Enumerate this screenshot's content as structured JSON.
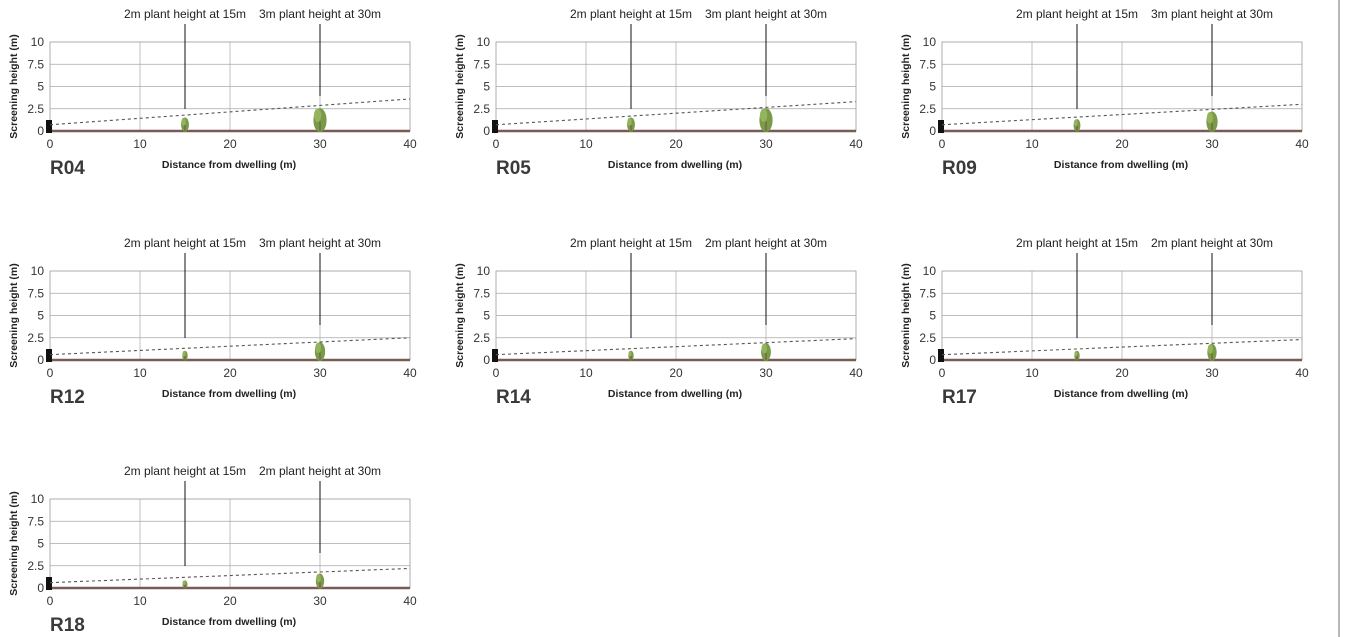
{
  "chart_data": [
    {
      "type": "line",
      "panel_label": "R04",
      "xlabel": "Distance from dwelling (m)",
      "ylabel": "Screening height (m)",
      "xlim": [
        0,
        40
      ],
      "ylim": [
        0,
        10
      ],
      "x_ticks": [
        "0",
        "10",
        "20",
        "30",
        "40"
      ],
      "y_ticks": [
        "0",
        "2.5",
        "5",
        "7.5",
        "10"
      ],
      "grid": true,
      "sightline": {
        "x": [
          0,
          40
        ],
        "y": [
          0.7,
          3.6
        ]
      },
      "plants": [
        {
          "x": 15,
          "height": 1.6,
          "label": "2m plant height at 15m"
        },
        {
          "x": 30,
          "height": 2.7,
          "label": "3m plant height at 30m"
        }
      ],
      "colors": {
        "sightline": "#555555",
        "plant": "#7a9a4a",
        "ground": "#7a5a55",
        "dwelling": "#111111"
      }
    },
    {
      "type": "line",
      "panel_label": "R05",
      "xlabel": "Distance from dwelling (m)",
      "ylabel": "Screening height (m)",
      "xlim": [
        0,
        40
      ],
      "ylim": [
        0,
        10
      ],
      "x_ticks": [
        "0",
        "10",
        "20",
        "30",
        "40"
      ],
      "y_ticks": [
        "0",
        "2.5",
        "5",
        "7.5",
        "10"
      ],
      "grid": true,
      "sightline": {
        "x": [
          0,
          40
        ],
        "y": [
          0.7,
          3.3
        ]
      },
      "plants": [
        {
          "x": 15,
          "height": 1.6,
          "label": "2m plant height at 15m"
        },
        {
          "x": 30,
          "height": 2.7,
          "label": "3m plant height at 30m"
        }
      ],
      "colors": {
        "sightline": "#555555",
        "plant": "#7a9a4a",
        "ground": "#7a5a55",
        "dwelling": "#111111"
      }
    },
    {
      "type": "line",
      "panel_label": "R09",
      "xlabel": "Distance from dwelling (m)",
      "ylabel": "Screening height (m)",
      "xlim": [
        0,
        40
      ],
      "ylim": [
        0,
        10
      ],
      "x_ticks": [
        "0",
        "10",
        "20",
        "30",
        "40"
      ],
      "y_ticks": [
        "0",
        "2.5",
        "5",
        "7.5",
        "10"
      ],
      "grid": true,
      "sightline": {
        "x": [
          0,
          40
        ],
        "y": [
          0.7,
          3.0
        ]
      },
      "plants": [
        {
          "x": 15,
          "height": 1.4,
          "label": "2m plant height at 15m"
        },
        {
          "x": 30,
          "height": 2.3,
          "label": "3m plant height at 30m"
        }
      ],
      "colors": {
        "sightline": "#555555",
        "plant": "#7a9a4a",
        "ground": "#7a5a55",
        "dwelling": "#111111"
      }
    },
    {
      "type": "line",
      "panel_label": "R12",
      "xlabel": "Distance from dwelling (m)",
      "ylabel": "Screening height (m)",
      "xlim": [
        0,
        40
      ],
      "ylim": [
        0,
        10
      ],
      "x_ticks": [
        "0",
        "10",
        "20",
        "30",
        "40"
      ],
      "y_ticks": [
        "0",
        "2.5",
        "5",
        "7.5",
        "10"
      ],
      "grid": true,
      "sightline": {
        "x": [
          0,
          40
        ],
        "y": [
          0.6,
          2.5
        ]
      },
      "plants": [
        {
          "x": 15,
          "height": 1.1,
          "label": "2m plant height at 15m"
        },
        {
          "x": 30,
          "height": 2.1,
          "label": "3m plant height at 30m"
        }
      ],
      "colors": {
        "sightline": "#555555",
        "plant": "#7a9a4a",
        "ground": "#7a5a55",
        "dwelling": "#111111"
      }
    },
    {
      "type": "line",
      "panel_label": "R14",
      "xlabel": "Distance from dwelling (m)",
      "ylabel": "Screening height (m)",
      "xlim": [
        0,
        40
      ],
      "ylim": [
        0,
        10
      ],
      "x_ticks": [
        "0",
        "10",
        "20",
        "30",
        "40"
      ],
      "y_ticks": [
        "0",
        "2.5",
        "5",
        "7.5",
        "10"
      ],
      "grid": true,
      "sightline": {
        "x": [
          0,
          40
        ],
        "y": [
          0.6,
          2.4
        ]
      },
      "plants": [
        {
          "x": 15,
          "height": 1.1,
          "label": "2m plant height at 15m"
        },
        {
          "x": 30,
          "height": 2.0,
          "label": "2m plant height at 30m"
        }
      ],
      "colors": {
        "sightline": "#555555",
        "plant": "#7a9a4a",
        "ground": "#7a5a55",
        "dwelling": "#111111"
      }
    },
    {
      "type": "line",
      "panel_label": "R17",
      "xlabel": "Distance from dwelling (m)",
      "ylabel": "Screening height (m)",
      "xlim": [
        0,
        40
      ],
      "ylim": [
        0,
        10
      ],
      "x_ticks": [
        "0",
        "10",
        "20",
        "30",
        "40"
      ],
      "y_ticks": [
        "0",
        "2.5",
        "5",
        "7.5",
        "10"
      ],
      "grid": true,
      "sightline": {
        "x": [
          0,
          40
        ],
        "y": [
          0.6,
          2.3
        ]
      },
      "plants": [
        {
          "x": 15,
          "height": 1.1,
          "label": "2m plant height at 15m"
        },
        {
          "x": 30,
          "height": 1.9,
          "label": "2m plant height at 30m"
        }
      ],
      "colors": {
        "sightline": "#555555",
        "plant": "#7a9a4a",
        "ground": "#7a5a55",
        "dwelling": "#111111"
      }
    },
    {
      "type": "line",
      "panel_label": "R18",
      "xlabel": "Distance from dwelling (m)",
      "ylabel": "Screening height (m)",
      "xlim": [
        0,
        40
      ],
      "ylim": [
        0,
        10
      ],
      "x_ticks": [
        "0",
        "10",
        "20",
        "30",
        "40"
      ],
      "y_ticks": [
        "0",
        "2.5",
        "5",
        "7.5",
        "10"
      ],
      "grid": true,
      "sightline": {
        "x": [
          0,
          40
        ],
        "y": [
          0.6,
          2.2
        ]
      },
      "plants": [
        {
          "x": 15,
          "height": 0.9,
          "label": "2m plant height at 15m"
        },
        {
          "x": 30,
          "height": 1.7,
          "label": "2m plant height at 30m"
        }
      ],
      "colors": {
        "sightline": "#555555",
        "plant": "#7a9a4a",
        "ground": "#7a5a55",
        "dwelling": "#111111"
      }
    }
  ]
}
